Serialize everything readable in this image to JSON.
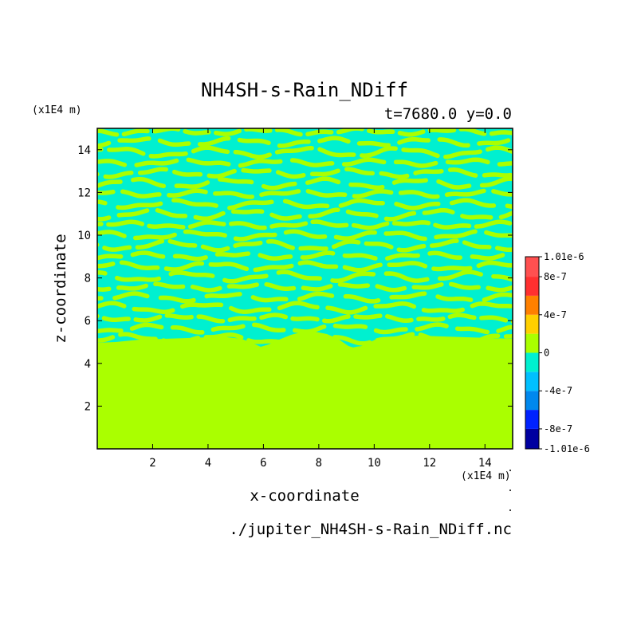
{
  "chart_data": {
    "type": "heatmap",
    "title": "NH4SH-s-Rain_NDiff",
    "subtitle": "t=7680.0 y=0.0",
    "xlabel": "x-coordinate",
    "ylabel": "z-coordinate",
    "x_unit": "(x1E4 m)",
    "y_unit": "(x1E4 m)",
    "xlim": [
      0,
      15
    ],
    "ylim": [
      0,
      15
    ],
    "x_ticks": [
      "2",
      "4",
      "6",
      "8",
      "10",
      "12",
      "14"
    ],
    "y_ticks": [
      "2",
      "4",
      "6",
      "8",
      "10",
      "12",
      "14"
    ],
    "source_file": "./jupiter_NH4SH-s-Rain_NDiff.nc",
    "colorbar": {
      "labels": [
        "1.01e-6",
        "8e-7",
        "4e-7",
        "0",
        "-4e-7",
        "-8e-7",
        "-1.01e-6"
      ],
      "label_values": [
        1.01e-06,
        8e-07,
        4e-07,
        0,
        -4e-07,
        -8e-07,
        -1.01e-06
      ],
      "levels": [
        -1.01e-06,
        -8e-07,
        -6e-07,
        -4e-07,
        -2e-07,
        0,
        2e-07,
        4e-07,
        6e-07,
        8e-07,
        1.01e-06
      ],
      "colors": [
        "#0000a0",
        "#0022ff",
        "#0088ee",
        "#00c0ff",
        "#00f0d0",
        "#aaff00",
        "#ffd000",
        "#ff8000",
        "#ff3030",
        "#ff5050"
      ]
    },
    "field": {
      "uniform_region": {
        "z_range": [
          0,
          5
        ],
        "value_band": "0 to 2e-7",
        "color": "#aaff00"
      },
      "banded_region": {
        "z_range": [
          5,
          15
        ],
        "value_bands": [
          "-2e-7 to 0",
          "0 to 2e-7"
        ],
        "colors": [
          "#00f0d0",
          "#aaff00"
        ]
      }
    }
  }
}
